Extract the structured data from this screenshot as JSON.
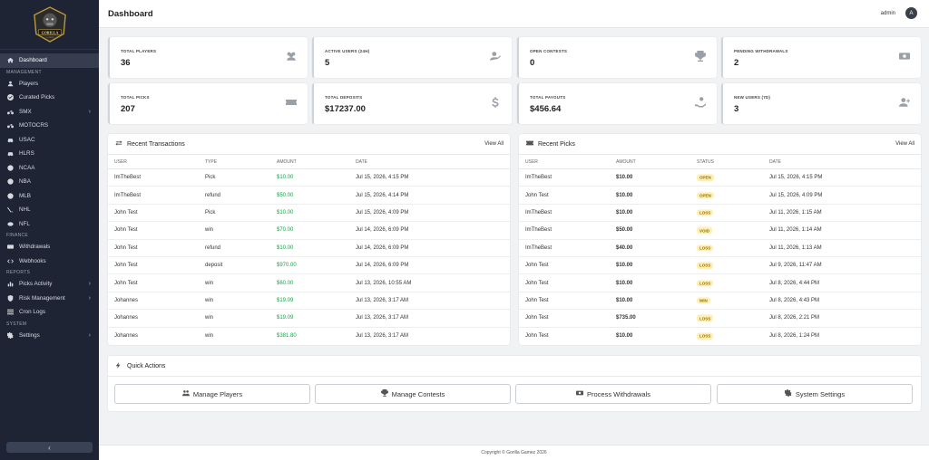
{
  "brand": {
    "logo_text": "GORILLA GAMEZ"
  },
  "header": {
    "title": "Dashboard",
    "user": "admin",
    "avatar_letter": "A"
  },
  "sidebar": {
    "collapse_label": "‹",
    "items": [
      {
        "label": "Dashboard"
      },
      {
        "section": "MANAGEMENT"
      },
      {
        "label": "Players"
      },
      {
        "label": "Curated Picks"
      },
      {
        "label": "SMX"
      },
      {
        "label": "MOTOCRS"
      },
      {
        "label": "USAC"
      },
      {
        "label": "HLRS"
      },
      {
        "label": "NCAA"
      },
      {
        "label": "NBA"
      },
      {
        "label": "MLB"
      },
      {
        "label": "NHL"
      },
      {
        "label": "NFL"
      },
      {
        "section": "FINANCE"
      },
      {
        "label": "Withdrawals"
      },
      {
        "label": "Webhooks"
      },
      {
        "section": "REPORTS"
      },
      {
        "label": "Picks Activity"
      },
      {
        "label": "Risk Management"
      },
      {
        "label": "Cron Logs"
      },
      {
        "section": "SYSTEM"
      },
      {
        "label": "Settings"
      }
    ]
  },
  "stats": [
    {
      "label": "TOTAL PLAYERS",
      "value": "36",
      "icon": "users-icon"
    },
    {
      "label": "ACTIVE USERS (24H)",
      "value": "5",
      "icon": "user-check-icon"
    },
    {
      "label": "OPEN CONTESTS",
      "value": "0",
      "icon": "trophy-icon"
    },
    {
      "label": "PENDING WITHDRAWALS",
      "value": "2",
      "icon": "money-icon"
    },
    {
      "label": "TOTAL PICKS",
      "value": "207",
      "icon": "ticket-icon"
    },
    {
      "label": "TOTAL DEPOSITS",
      "value": "$17237.00",
      "icon": "dollar-icon"
    },
    {
      "label": "TOTAL PAYOUTS",
      "value": "$456.64",
      "icon": "hand-coin-icon"
    },
    {
      "label": "NEW USERS (7D)",
      "value": "3",
      "icon": "user-plus-icon"
    }
  ],
  "transactions": {
    "title": "Recent Transactions",
    "view_all": "View All",
    "headers": [
      "USER",
      "TYPE",
      "AMOUNT",
      "DATE"
    ],
    "rows": [
      [
        "ImTheBest",
        "Pick",
        "$10.00",
        "Jul 15, 2026, 4:15 PM"
      ],
      [
        "ImTheBest",
        "refund",
        "$50.00",
        "Jul 15, 2026, 4:14 PM"
      ],
      [
        "John Test",
        "Pick",
        "$10.00",
        "Jul 15, 2026, 4:09 PM"
      ],
      [
        "John Test",
        "win",
        "$70.00",
        "Jul 14, 2026, 6:09 PM"
      ],
      [
        "John Test",
        "refund",
        "$10.00",
        "Jul 14, 2026, 6:09 PM"
      ],
      [
        "John Test",
        "deposit",
        "$970.00",
        "Jul 14, 2026, 6:09 PM"
      ],
      [
        "John Test",
        "win",
        "$60.00",
        "Jul 13, 2026, 10:55 AM"
      ],
      [
        "Johannes",
        "win",
        "$19.09",
        "Jul 13, 2026, 3:17 AM"
      ],
      [
        "Johannes",
        "win",
        "$19.09",
        "Jul 13, 2026, 3:17 AM"
      ],
      [
        "Johannes",
        "win",
        "$381.80",
        "Jul 13, 2026, 3:17 AM"
      ]
    ]
  },
  "picks": {
    "title": "Recent Picks",
    "view_all": "View All",
    "headers": [
      "USER",
      "AMOUNT",
      "STATUS",
      "DATE"
    ],
    "rows": [
      [
        "ImTheBest",
        "$10.00",
        "OPEN",
        "Jul 15, 2026, 4:15 PM"
      ],
      [
        "John Test",
        "$10.00",
        "OPEN",
        "Jul 15, 2026, 4:09 PM"
      ],
      [
        "ImTheBest",
        "$10.00",
        "LOSS",
        "Jul 11, 2026, 1:15 AM"
      ],
      [
        "ImTheBest",
        "$50.00",
        "VOID",
        "Jul 11, 2026, 1:14 AM"
      ],
      [
        "ImTheBest",
        "$40.00",
        "LOSS",
        "Jul 11, 2026, 1:13 AM"
      ],
      [
        "John Test",
        "$10.00",
        "LOSS",
        "Jul 9, 2026, 11:47 AM"
      ],
      [
        "John Test",
        "$10.00",
        "LOSS",
        "Jul 8, 2026, 4:44 PM"
      ],
      [
        "John Test",
        "$10.00",
        "WIN",
        "Jul 8, 2026, 4:43 PM"
      ],
      [
        "John Test",
        "$735.00",
        "LOSS",
        "Jul 8, 2026, 2:21 PM"
      ],
      [
        "John Test",
        "$10.00",
        "LOSS",
        "Jul 8, 2026, 1:24 PM"
      ]
    ]
  },
  "quick_actions": {
    "title": "Quick Actions",
    "buttons": [
      "Manage Players",
      "Manage Contests",
      "Process Withdrawals",
      "System Settings"
    ]
  },
  "footer": {
    "text": "Copyright © Gorilla Gamez 2026"
  },
  "colors": {
    "sidebar": "#1e2433",
    "positive": "#18a24a",
    "badge_bg": "#fdf0b5",
    "badge_text": "#9a6b00"
  }
}
